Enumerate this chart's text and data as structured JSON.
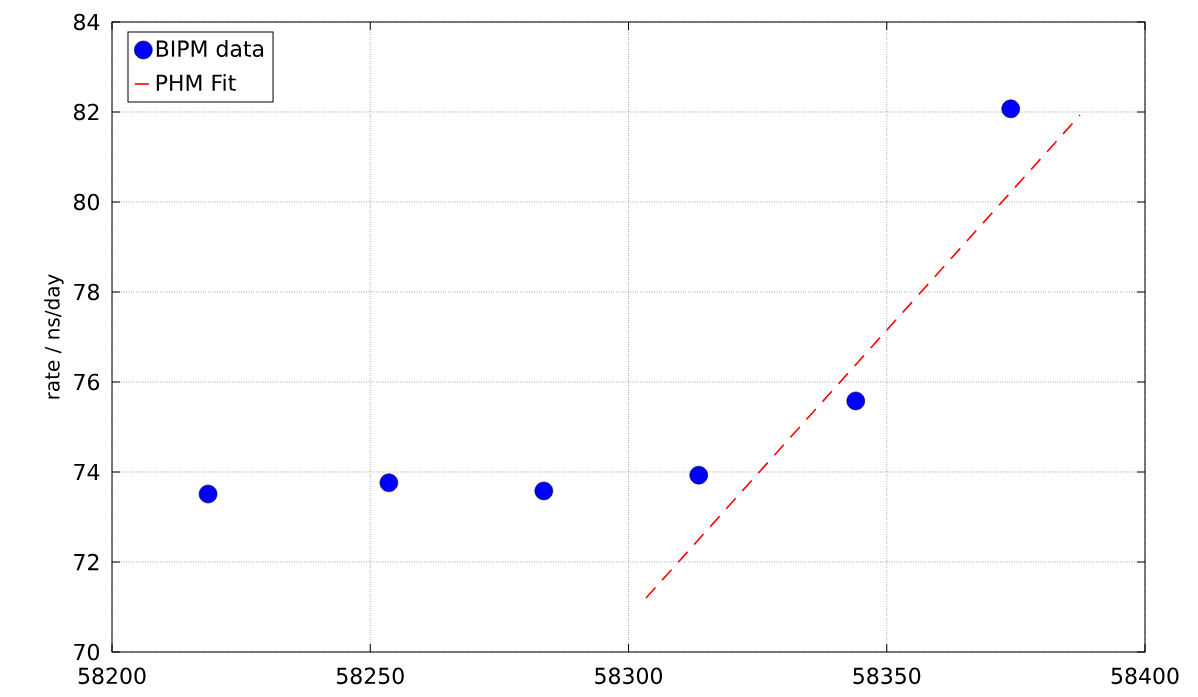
{
  "chart_data": {
    "type": "scatter",
    "ylabel": "rate / ns/day",
    "series": [
      {
        "name": "BIPM data",
        "color": "#0000ff",
        "marker": "circle",
        "x": [
          58218.6,
          58253.6,
          58283.6,
          58313.6,
          58344,
          58374
        ],
        "values": [
          73.51,
          73.76,
          73.58,
          73.93,
          75.58,
          82.07
        ]
      },
      {
        "name": "PHM Fit",
        "type": "line",
        "color": "#ff0000",
        "marker": "none",
        "line_style": "dashed",
        "x": [
          58303.4,
          58387.4
        ],
        "values": [
          71.2,
          81.93
        ]
      }
    ],
    "xlim": [
      58200,
      58400
    ],
    "ylim": [
      70,
      84
    ],
    "xticks": [
      58200,
      58250,
      58300,
      58350,
      58400
    ],
    "yticks": [
      70,
      72,
      74,
      76,
      78,
      80,
      82,
      84
    ],
    "grid": true,
    "legend": "top left"
  }
}
